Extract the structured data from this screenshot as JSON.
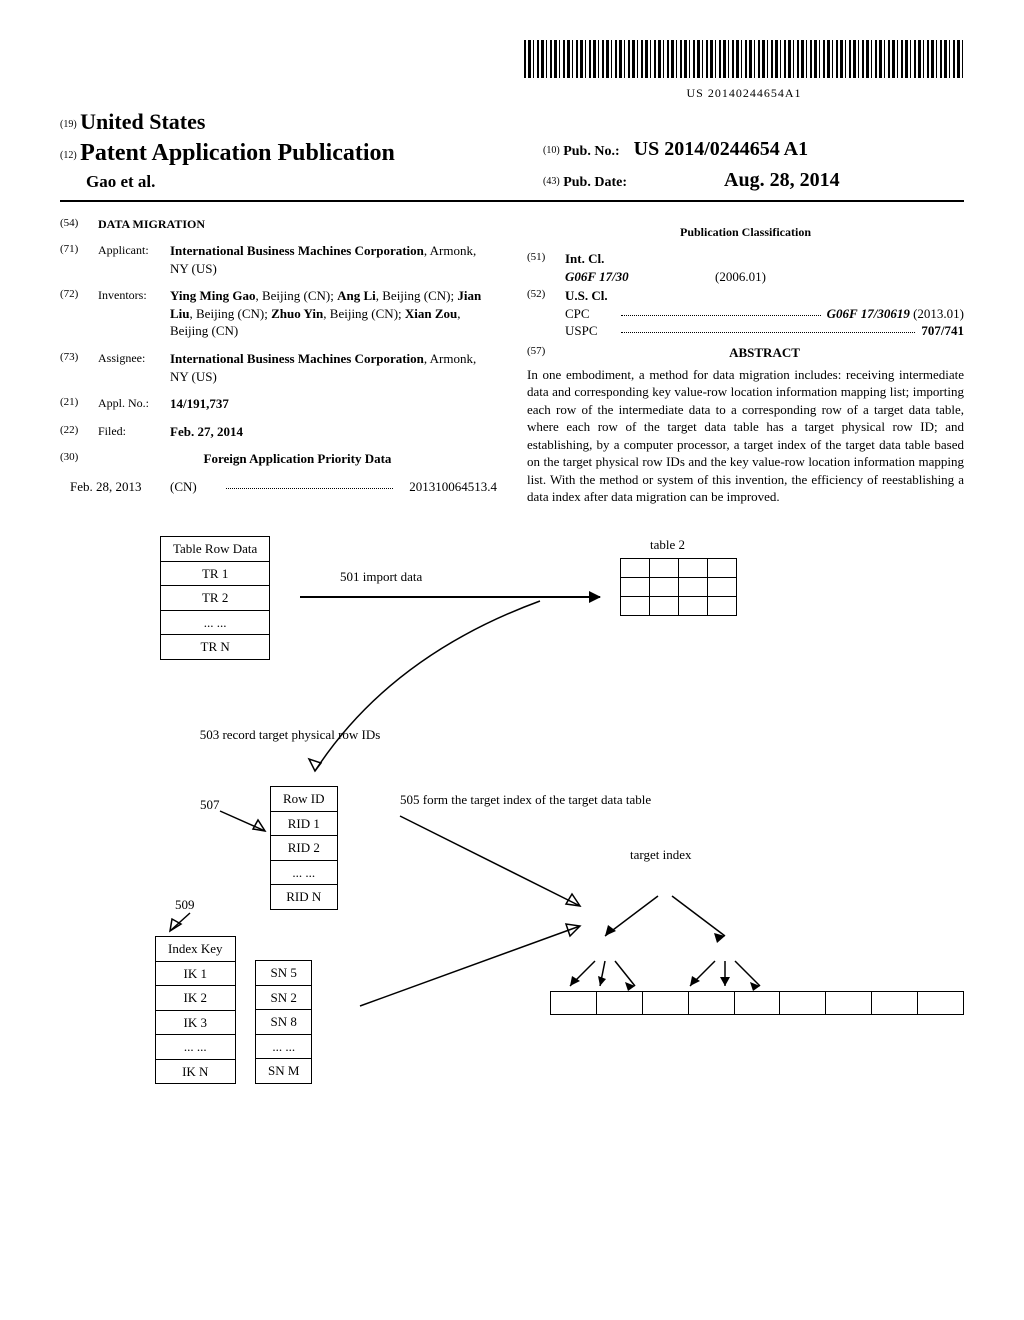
{
  "barcode_text": "US 20140244654A1",
  "header": {
    "code19": "(19)",
    "country": "United States",
    "code12": "(12)",
    "pub_type": "Patent Application Publication",
    "authors_short": "Gao et al.",
    "code10": "(10)",
    "pub_no_label": "Pub. No.:",
    "pub_no": "US 2014/0244654 A1",
    "code43": "(43)",
    "pub_date_label": "Pub. Date:",
    "pub_date": "Aug. 28, 2014"
  },
  "left": {
    "s54": {
      "num": "(54)",
      "title": "DATA MIGRATION"
    },
    "s71": {
      "num": "(71)",
      "label": "Applicant:",
      "body_bold": "International Business Machines Corporation",
      "body_tail": ", Armonk, NY (US)"
    },
    "s72": {
      "num": "(72)",
      "label": "Inventors:",
      "body": "<b>Ying Ming Gao</b>, Beijing (CN); <b>Ang Li</b>, Beijing (CN); <b>Jian Liu</b>, Beijing (CN); <b>Zhuo Yin</b>, Beijing (CN); <b>Xian Zou</b>, Beijing (CN)"
    },
    "s73": {
      "num": "(73)",
      "label": "Assignee:",
      "body_bold": "International Business Machines Corporation",
      "body_tail": ", Armonk, NY (US)"
    },
    "s21": {
      "num": "(21)",
      "label": "Appl. No.:",
      "body": "14/191,737"
    },
    "s22": {
      "num": "(22)",
      "label": "Filed:",
      "body": "Feb. 27, 2014"
    },
    "s30_heading": {
      "num": "(30)",
      "title": "Foreign Application Priority Data"
    },
    "s30_row": {
      "date": "Feb. 28, 2013",
      "country": "(CN)",
      "appno": "201310064513.4"
    }
  },
  "right": {
    "classification_heading": "Publication Classification",
    "s51": {
      "num": "(51)",
      "label": "Int. Cl.",
      "code": "G06F 17/30",
      "date": "(2006.01)"
    },
    "s52": {
      "num": "(52)",
      "label": "U.S. Cl.",
      "cpc_label": "CPC",
      "cpc_val": "G06F 17/30619",
      "cpc_date": "(2013.01)",
      "uspc_label": "USPC",
      "uspc_val": "707/741"
    },
    "s57": {
      "num": "(57)",
      "title": "ABSTRACT"
    },
    "abstract": "In one embodiment, a method for data migration includes: receiving intermediate data and corresponding key value-row location information mapping list; importing each row of the intermediate data to a corresponding row of a target data table, where each row of the target data table has a target physical row ID; and establishing, by a computer processor, a target index of the target data table based on the target physical row IDs and the key value-row location information mapping list. With the method or system of this invention, the efficiency of reestablishing a data index after data migration can be improved."
  },
  "diagram": {
    "table_row_data_header": "Table Row Data",
    "tr_rows": [
      "TR 1",
      "TR 2",
      "... ...",
      "TR N"
    ],
    "label_501": "501 import data",
    "table2_label": "table 2",
    "label_503": "503 record target physical row IDs",
    "label_507": "507",
    "rowid_header": "Row ID",
    "rid_rows": [
      "RID 1",
      "RID 2",
      "... ...",
      "RID N"
    ],
    "label_505": "505 form the target index of the target data table",
    "label_509": "509",
    "indexkey_header": "Index Key",
    "ik_rows": [
      "IK 1",
      "IK 2",
      "IK 3",
      "... ...",
      "IK N"
    ],
    "sn_rows": [
      "SN 5",
      "SN 2",
      "SN 8",
      "... ...",
      "SN M"
    ],
    "target_index_label": "target index"
  }
}
